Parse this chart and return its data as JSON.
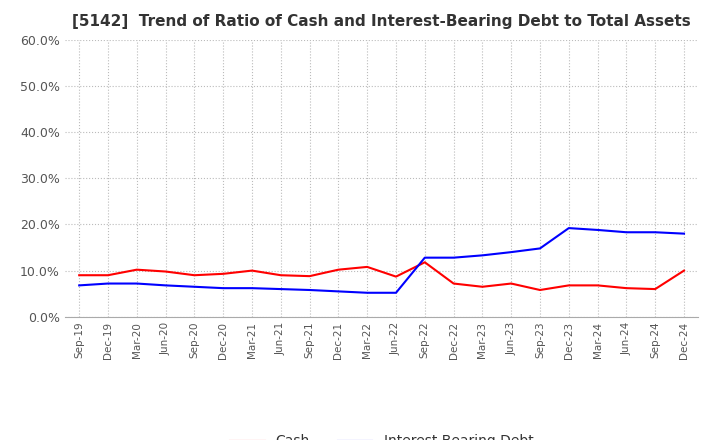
{
  "title": "[5142]  Trend of Ratio of Cash and Interest-Bearing Debt to Total Assets",
  "x_labels": [
    "Sep-19",
    "Dec-19",
    "Mar-20",
    "Jun-20",
    "Sep-20",
    "Dec-20",
    "Mar-21",
    "Jun-21",
    "Sep-21",
    "Dec-21",
    "Mar-22",
    "Jun-22",
    "Sep-22",
    "Dec-22",
    "Mar-23",
    "Jun-23",
    "Sep-23",
    "Dec-23",
    "Mar-24",
    "Jun-24",
    "Sep-24",
    "Dec-24"
  ],
  "cash": [
    0.09,
    0.09,
    0.102,
    0.098,
    0.09,
    0.093,
    0.1,
    0.09,
    0.088,
    0.102,
    0.108,
    0.087,
    0.118,
    0.072,
    0.065,
    0.072,
    0.058,
    0.068,
    0.068,
    0.062,
    0.06,
    0.1
  ],
  "interest_bearing_debt": [
    0.068,
    0.072,
    0.072,
    0.068,
    0.065,
    0.062,
    0.062,
    0.06,
    0.058,
    0.055,
    0.052,
    0.052,
    0.128,
    0.128,
    0.133,
    0.14,
    0.148,
    0.192,
    0.188,
    0.183,
    0.183,
    0.18
  ],
  "cash_color": "#ff0000",
  "debt_color": "#0000ff",
  "ylim": [
    0.0,
    0.6
  ],
  "yticks": [
    0.0,
    0.1,
    0.2,
    0.3,
    0.4,
    0.5,
    0.6
  ],
  "grid_color": "#bbbbbb",
  "bg_color": "#ffffff",
  "title_fontsize": 11,
  "legend_cash": "Cash",
  "legend_debt": "Interest-Bearing Debt"
}
